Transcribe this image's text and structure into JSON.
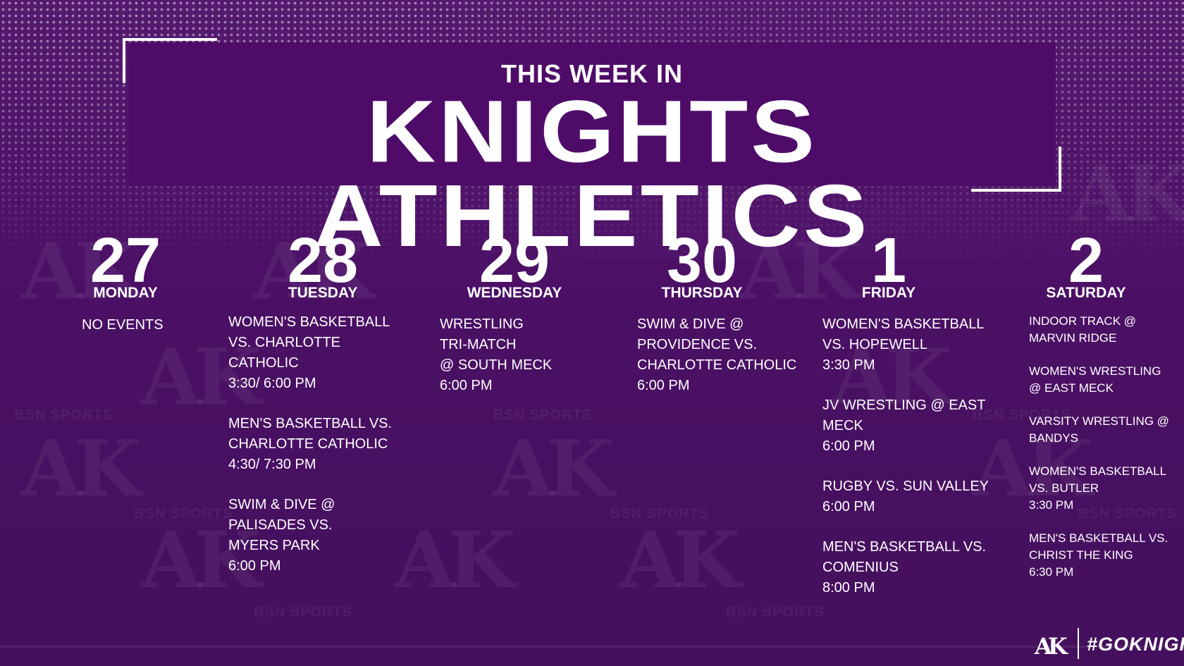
{
  "header": {
    "subtitle": "THIS WEEK IN",
    "title": "KNIGHTS ATHLETICS"
  },
  "days": [
    {
      "num": "27",
      "name": "MONDAY",
      "events": [
        "NO EVENTS"
      ]
    },
    {
      "num": "28",
      "name": "TUESDAY",
      "events": [
        "WOMEN'S BASKETBALL\nVS. CHARLOTTE\nCATHOLIC\n3:30/ 6:00 PM",
        "MEN'S BASKETBALL VS.\nCHARLOTTE CATHOLIC\n4:30/ 7:30 PM",
        "SWIM & DIVE @\nPALISADES VS.\nMYERS PARK\n6:00 PM"
      ]
    },
    {
      "num": "29",
      "name": "WEDNESDAY",
      "events": [
        "WRESTLING\nTRI-MATCH\n@ SOUTH MECK\n6:00 PM"
      ]
    },
    {
      "num": "30",
      "name": "THURSDAY",
      "events": [
        "SWIM & DIVE @\nPROVIDENCE VS.\nCHARLOTTE CATHOLIC\n6:00 PM"
      ]
    },
    {
      "num": "1",
      "name": "FRIDAY",
      "events": [
        "WOMEN'S BASKETBALL\nVS. HOPEWELL\n3:30 PM",
        "JV WRESTLING @ EAST\nMECK\n6:00 PM",
        "RUGBY VS. SUN VALLEY\n6:00 PM",
        "MEN'S BASKETBALL VS.\nCOMENIUS\n8:00 PM"
      ]
    },
    {
      "num": "2",
      "name": "SATURDAY",
      "events": [
        "INDOOR TRACK @\nMARVIN RIDGE",
        "WOMEN'S WRESTLING\n@ EAST MECK",
        "VARSITY WRESTLING @\nBANDYS",
        "WOMEN'S BASKETBALL\nVS. BUTLER\n3:30 PM",
        "MEN'S BASKETBALL VS.\nCHRIST THE KING\n6:30 PM"
      ]
    }
  ],
  "watermarks": {
    "ak": "AK",
    "bsn": "BSN SPORTS"
  },
  "footer": {
    "logo": "AK",
    "hashtag": "#GOKNIGHTS"
  },
  "colors": {
    "background": "#4b1065",
    "banner": "#4e0c68",
    "text": "#ffffff"
  }
}
